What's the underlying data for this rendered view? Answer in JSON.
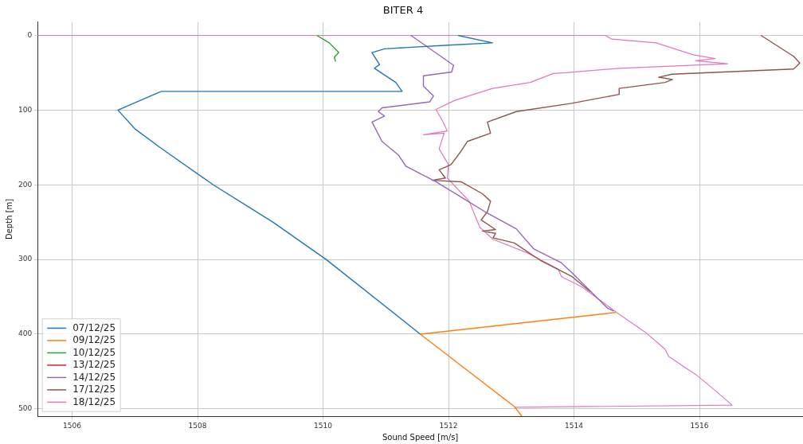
{
  "chart_data": {
    "type": "line",
    "title": "BITER 4",
    "xlabel": "Sound Speed [m/s]",
    "ylabel": "Depth [m]",
    "xlim": [
      1505.45,
      1517.65
    ],
    "xticks": [
      1506,
      1508,
      1510,
      1512,
      1514,
      1516
    ],
    "ylim": [
      510,
      -18
    ],
    "yticks": [
      0,
      100,
      200,
      300,
      400,
      500
    ],
    "grid": true,
    "legend": "bottom left",
    "marker": "none",
    "line_style": "solid",
    "series": [
      {
        "name": "07/12/25",
        "color": "#1f77b4",
        "x": [
          1512.15,
          1512.7,
          1512.0,
          1510.98,
          1510.78,
          1510.9,
          1510.82,
          1511.16,
          1511.26,
          1507.42,
          1506.73,
          1507.0,
          1507.4,
          1508.25,
          1509.2,
          1510.05,
          1511.55
        ],
        "values": [
          0,
          10,
          13,
          18,
          23,
          39,
          44,
          63,
          75,
          75,
          100,
          125,
          150,
          200,
          250,
          300,
          400
        ]
      },
      {
        "name": "09/12/25",
        "color": "#ff7f0e",
        "x": [
          1514.66,
          1511.55,
          1513.05,
          1513.17
        ],
        "values": [
          371,
          400,
          497,
          510
        ]
      },
      {
        "name": "10/12/25",
        "color": "#2ca02c",
        "x": [
          1509.9,
          1510.1,
          1510.25,
          1510.18,
          1510.2
        ],
        "values": [
          0,
          10,
          23,
          29,
          35
        ]
      },
      {
        "name": "13/12/25",
        "color": "#d62728"
      },
      {
        "name": "14/12/25",
        "color": "#9467bd",
        "x": [
          1511.4,
          1512.08,
          1512.05,
          1511.6,
          1511.6,
          1511.76,
          1511.7,
          1510.94,
          1510.88,
          1510.98,
          1510.78,
          1510.94,
          1511.2,
          1511.32,
          1511.8,
          1512.58,
          1513.08,
          1513.36,
          1513.79,
          1513.97,
          1514.53,
          1514.63
        ],
        "values": [
          0,
          40,
          49,
          54,
          68,
          81,
          89,
          97,
          102,
          108,
          116,
          142,
          160,
          175,
          196,
          236,
          259,
          286,
          304,
          318,
          365,
          369
        ]
      },
      {
        "name": "17/12/25",
        "color": "#8c564b",
        "x": [
          1516.98,
          1517.5,
          1517.6,
          1517.5,
          1515.56,
          1515.35,
          1515.57,
          1515.45,
          1514.72,
          1514.72,
          1513.96,
          1513.08,
          1512.62,
          1512.67,
          1512.3,
          1512.2,
          1512.04,
          1511.85,
          1511.95,
          1511.74,
          1512.2,
          1512.54,
          1512.67,
          1512.62,
          1512.52,
          1512.75,
          1512.54,
          1512.75,
          1512.71,
          1513.05,
          1513.46,
          1513.97,
          1514.26
        ],
        "values": [
          0,
          28,
          37,
          45,
          52,
          56,
          59,
          63,
          71,
          79,
          91,
          102,
          116,
          131,
          142,
          155,
          173,
          180,
          191,
          194,
          196,
          212,
          222,
          236,
          247,
          260,
          262,
          265,
          271,
          278,
          301,
          323,
          343
        ]
      },
      {
        "name": "18/12/25",
        "color": "#e377c2",
        "x": [
          1505.45,
          1514.5,
          1514.6,
          1515.31,
          1515.9,
          1516.25,
          1515.94,
          1516.45,
          1514.72,
          1513.87,
          1513.67,
          1513.3,
          1512.7,
          1512.1,
          1511.8,
          1511.92,
          1511.98,
          1511.6,
          1511.93,
          1511.85,
          1512.0,
          1511.98,
          1512.33,
          1512.43,
          1512.5,
          1512.71,
          1513.25,
          1513.75,
          1513.8,
          1514.13,
          1514.68,
          1515.13,
          1515.45,
          1515.51,
          1515.94,
          1516.23,
          1516.52,
          1513.05
        ],
        "values": [
          0,
          0,
          5,
          10,
          26,
          31,
          34,
          38,
          44,
          50,
          51,
          63,
          71,
          87,
          99,
          117,
          128,
          133,
          131,
          152,
          173,
          191,
          222,
          243,
          257,
          273,
          291,
          313,
          323,
          337,
          371,
          397,
          420,
          430,
          454,
          474,
          495,
          498
        ]
      }
    ]
  }
}
